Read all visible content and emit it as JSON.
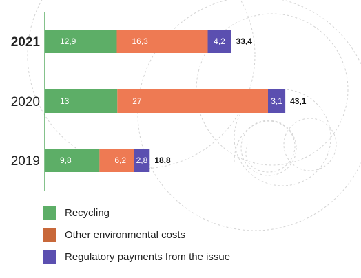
{
  "chart_data": {
    "type": "bar",
    "orientation": "horizontal",
    "stacked": true,
    "categories": [
      "2021",
      "2020",
      "2019"
    ],
    "series": [
      {
        "name": "Recycling",
        "color": "#5dae67",
        "values": [
          12.9,
          13,
          9.8
        ],
        "labels": [
          "12,9",
          "13",
          "9,8"
        ]
      },
      {
        "name": "Other environmental costs",
        "color": "#ee7a53",
        "values": [
          16.3,
          27,
          6.2
        ],
        "labels": [
          "16,3",
          "27",
          "6,2"
        ]
      },
      {
        "name": "Regulatory payments from the issue",
        "color": "#5b4fb0",
        "values": [
          4.2,
          3.1,
          2.8
        ],
        "labels": [
          "4,2",
          "3,1",
          "2,8"
        ]
      }
    ],
    "totals": [
      "33,4",
      "43,1",
      "18,8"
    ],
    "bold_category": "2021",
    "xlim": [
      0,
      45
    ],
    "legend_position": "bottom",
    "grid": false
  },
  "legend": {
    "items": [
      {
        "label": "Recycling",
        "color": "#5dae67"
      },
      {
        "label": "Other environmental costs",
        "color": "#c8683a"
      },
      {
        "label": "Regulatory payments from the issue",
        "color": "#5b4fb0"
      }
    ]
  }
}
